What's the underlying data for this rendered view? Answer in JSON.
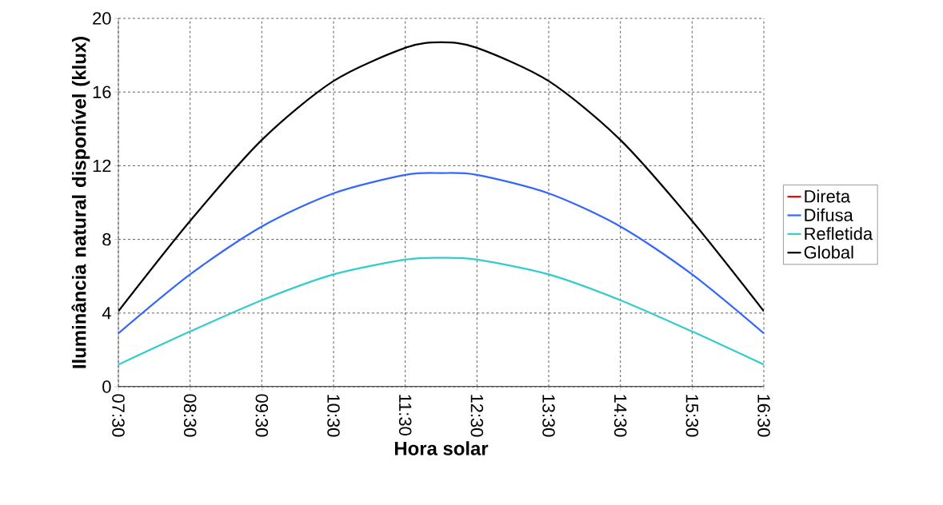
{
  "chart_data": {
    "type": "line",
    "xlabel": "Hora solar",
    "ylabel": "Iluminância natural disponível (klux)",
    "x": [
      7.5,
      8.5,
      9.5,
      10.5,
      11.5,
      12,
      12.5,
      13.5,
      14.5,
      15.5,
      16.5
    ],
    "series": [
      {
        "name": "Direta",
        "color": "#ff0000",
        "values": [
          0,
          0,
          0,
          0,
          0,
          0,
          0,
          0,
          0,
          0,
          0
        ]
      },
      {
        "name": "Difusa",
        "color": "#3366ff",
        "values": [
          2.9,
          6.1,
          8.7,
          10.5,
          11.5,
          11.6,
          11.5,
          10.5,
          8.7,
          6.1,
          2.9
        ]
      },
      {
        "name": "Refletida",
        "color": "#33cccc",
        "values": [
          1.2,
          3.0,
          4.7,
          6.1,
          6.9,
          7.0,
          6.9,
          6.1,
          4.7,
          3.0,
          1.2
        ]
      },
      {
        "name": "Global",
        "color": "#000000",
        "values": [
          4.1,
          9.0,
          13.4,
          16.6,
          18.4,
          18.7,
          18.4,
          16.6,
          13.4,
          9.0,
          4.1
        ]
      }
    ],
    "xlim": [
      7.5,
      16.5
    ],
    "xticks": [
      {
        "value": 7.5,
        "label": "07:30"
      },
      {
        "value": 8.5,
        "label": "08:30"
      },
      {
        "value": 9.5,
        "label": "09:30"
      },
      {
        "value": 10.5,
        "label": "10:30"
      },
      {
        "value": 11.5,
        "label": "11:30"
      },
      {
        "value": 12.5,
        "label": "12:30"
      },
      {
        "value": 13.5,
        "label": "13:30"
      },
      {
        "value": 14.5,
        "label": "14:30"
      },
      {
        "value": 15.5,
        "label": "15:30"
      },
      {
        "value": 16.5,
        "label": "16:30"
      }
    ],
    "ylim": [
      0,
      20
    ],
    "yticks": [
      0,
      4,
      8,
      12,
      16,
      20
    ],
    "grid": true,
    "legend": "right",
    "line_style": "solid"
  }
}
